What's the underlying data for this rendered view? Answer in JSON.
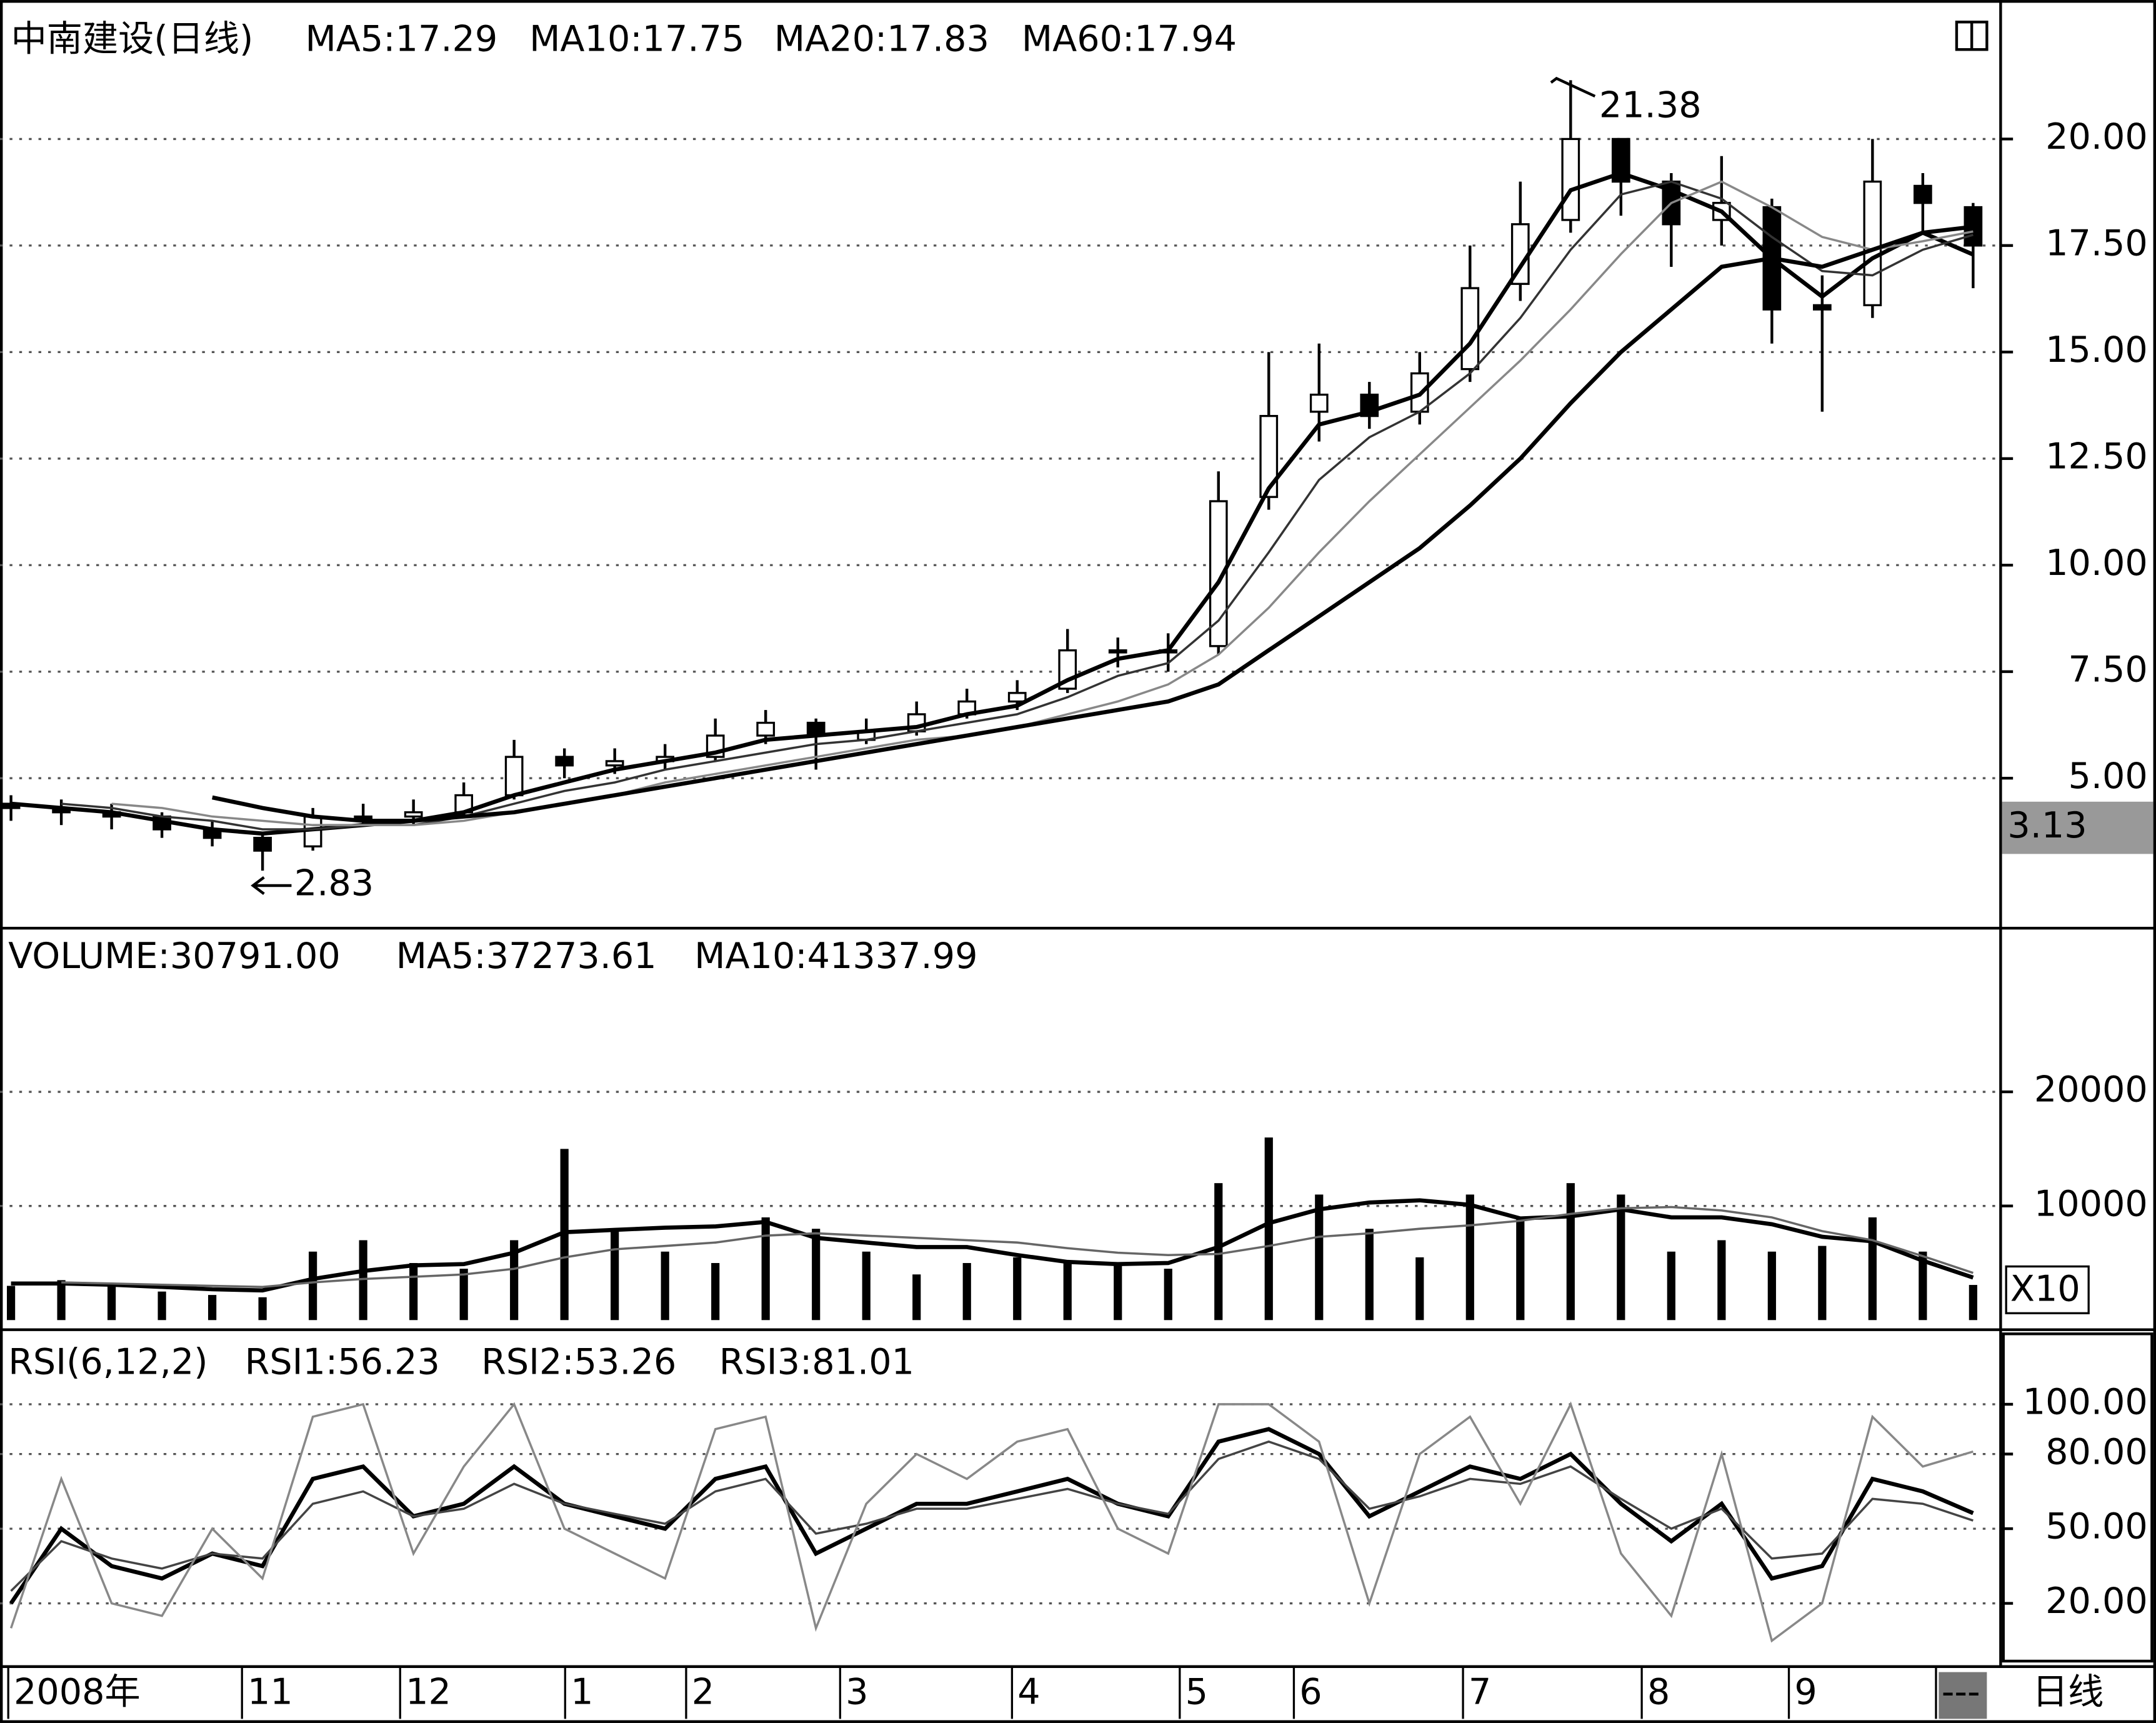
{
  "chart_data": [
    {
      "type": "candlestick",
      "title": "中南建设(日线)",
      "open": [
        4.4,
        4.3,
        4.2,
        4.1,
        3.8,
        3.6,
        3.4,
        4.1,
        4.1,
        4.2,
        4.6,
        5.5,
        5.3,
        5.4,
        5.5,
        6.0,
        6.3,
        5.9,
        6.1,
        6.5,
        6.8,
        7.1,
        8.0,
        8.0,
        8.1,
        11.6,
        13.6,
        14.0,
        13.6,
        14.6,
        16.6,
        18.1,
        20.0,
        19.0,
        18.1,
        18.4,
        16.1,
        16.1,
        18.9,
        18.4
      ],
      "high": [
        4.6,
        4.5,
        4.4,
        4.2,
        4.0,
        3.7,
        4.3,
        4.4,
        4.5,
        4.9,
        5.9,
        5.7,
        5.7,
        5.8,
        6.4,
        6.6,
        6.4,
        6.4,
        6.8,
        7.1,
        7.3,
        8.5,
        8.3,
        8.4,
        12.2,
        15.0,
        15.2,
        14.3,
        15.0,
        17.5,
        19.0,
        21.38,
        20.0,
        19.2,
        19.6,
        18.6,
        16.8,
        20.0,
        19.2,
        18.5
      ],
      "low": [
        4.0,
        3.9,
        3.8,
        3.6,
        3.4,
        2.83,
        3.3,
        3.9,
        3.9,
        4.1,
        4.5,
        5.0,
        5.1,
        5.2,
        5.4,
        5.8,
        5.2,
        5.8,
        6.0,
        6.4,
        6.6,
        7.0,
        7.6,
        7.5,
        7.9,
        11.3,
        12.9,
        13.2,
        13.3,
        14.3,
        16.2,
        17.8,
        18.2,
        17.0,
        17.5,
        15.2,
        13.6,
        15.8,
        17.8,
        16.5
      ],
      "close": [
        4.3,
        4.2,
        4.1,
        3.8,
        3.6,
        3.3,
        4.1,
        4.1,
        4.2,
        4.6,
        5.5,
        5.3,
        5.4,
        5.5,
        6.0,
        6.3,
        6.0,
        6.1,
        6.5,
        6.8,
        7.0,
        8.0,
        8.0,
        8.0,
        11.5,
        13.5,
        14.0,
        13.5,
        14.5,
        16.5,
        18.0,
        20.0,
        19.0,
        18.0,
        18.5,
        16.0,
        16.0,
        19.0,
        18.5,
        17.5
      ],
      "series": [
        {
          "name": "MA5:17.29",
          "color": "#000000",
          "values": [
            4.4,
            4.3,
            4.2,
            4.0,
            3.8,
            3.7,
            3.8,
            3.9,
            4.0,
            4.2,
            4.6,
            4.9,
            5.2,
            5.4,
            5.6,
            5.9,
            6.0,
            6.1,
            6.2,
            6.5,
            6.7,
            7.3,
            7.8,
            8.0,
            9.6,
            11.8,
            13.3,
            13.6,
            14.0,
            15.2,
            17.0,
            18.8,
            19.2,
            18.8,
            18.3,
            17.2,
            16.3,
            17.2,
            17.8,
            17.29
          ]
        },
        {
          "name": "MA10:17.75",
          "color": "#333333",
          "values": [
            null,
            4.4,
            4.3,
            4.1,
            4.0,
            3.8,
            3.8,
            3.9,
            3.9,
            4.1,
            4.4,
            4.7,
            4.9,
            5.2,
            5.4,
            5.6,
            5.8,
            5.9,
            6.1,
            6.3,
            6.5,
            6.9,
            7.4,
            7.7,
            8.7,
            10.3,
            12.0,
            13.0,
            13.6,
            14.5,
            15.8,
            17.4,
            18.7,
            19.0,
            18.6,
            17.7,
            16.9,
            16.8,
            17.4,
            17.75
          ]
        },
        {
          "name": "MA20:17.83",
          "color": "#888888",
          "values": [
            null,
            null,
            4.4,
            4.3,
            4.1,
            4.0,
            3.9,
            3.9,
            3.9,
            4.0,
            4.2,
            4.4,
            4.6,
            4.9,
            5.1,
            5.3,
            5.5,
            5.7,
            5.9,
            6.0,
            6.2,
            6.5,
            6.8,
            7.2,
            7.9,
            9.0,
            10.3,
            11.5,
            12.6,
            13.7,
            14.8,
            16.0,
            17.3,
            18.5,
            19.0,
            18.4,
            17.7,
            17.4,
            17.6,
            17.83
          ]
        },
        {
          "name": "MA60:17.94",
          "color": "#000000",
          "values": [
            null,
            null,
            null,
            null,
            4.55,
            4.3,
            4.1,
            4.0,
            4.0,
            4.1,
            4.2,
            4.4,
            4.6,
            4.8,
            5.0,
            5.2,
            5.4,
            5.6,
            5.8,
            6.0,
            6.2,
            6.4,
            6.6,
            6.8,
            7.2,
            8.0,
            8.8,
            9.6,
            10.4,
            11.4,
            12.5,
            13.8,
            15.0,
            16.0,
            17.0,
            17.2,
            17.0,
            17.4,
            17.8,
            17.94
          ]
        }
      ],
      "ylim": [
        1.48,
        23.1
      ],
      "yticks": [
        {
          "value": 5,
          "label": "5.00"
        },
        {
          "value": 7.5,
          "label": "7.50"
        },
        {
          "value": 10,
          "label": "10.00"
        },
        {
          "value": 12.5,
          "label": "12.50"
        },
        {
          "value": 15,
          "label": "15.00"
        },
        {
          "value": 17.5,
          "label": "17.50"
        },
        {
          "value": 20,
          "label": "20.00"
        }
      ],
      "annotations": [
        {
          "value": 21.38,
          "label": "21.38"
        },
        {
          "value": 2.83,
          "label": "2.83"
        }
      ],
      "cursor_label": "3.13",
      "grid": true
    },
    {
      "type": "bar",
      "title": "VOLUME:30791.00",
      "values": [
        3000,
        3500,
        3000,
        2500,
        2200,
        2000,
        6000,
        7000,
        5000,
        4500,
        7000,
        15000,
        8000,
        6000,
        5000,
        9000,
        8000,
        6000,
        4000,
        5000,
        5500,
        5000,
        5000,
        4500,
        12000,
        16000,
        11000,
        8000,
        5500,
        11000,
        9000,
        12000,
        11000,
        6000,
        7000,
        6000,
        6500,
        9000,
        6000,
        3079
      ],
      "color": "#000000",
      "series": [
        {
          "name": "MA5:37273.61",
          "color": "#000000",
          "values": [
            3200,
            3200,
            3100,
            2900,
            2700,
            2600,
            3600,
            4300,
            4800,
            4900,
            5900,
            7700,
            7900,
            8100,
            8200,
            8600,
            7200,
            6800,
            6400,
            6400,
            5700,
            5100,
            4900,
            5000,
            6400,
            8500,
            9700,
            10300,
            10500,
            10100,
            8900,
            9100,
            9700,
            9000,
            9000,
            8400,
            7300,
            6900,
            5200,
            3727
          ]
        },
        {
          "name": "MA10:41337.99",
          "color": "#666666",
          "values": [
            null,
            3300,
            3200,
            3100,
            3000,
            2900,
            3300,
            3600,
            3800,
            4000,
            4500,
            5500,
            6200,
            6500,
            6800,
            7400,
            7600,
            7400,
            7200,
            7000,
            6800,
            6300,
            5900,
            5700,
            5800,
            6500,
            7300,
            7600,
            8000,
            8300,
            8700,
            9300,
            9800,
            9900,
            9600,
            9000,
            7800,
            7000,
            5600,
            4134
          ]
        }
      ],
      "ylim": [
        0,
        34100
      ],
      "yticks": [
        10000,
        20000
      ],
      "multiplier_label": "X10",
      "grid": true
    },
    {
      "type": "line",
      "title": "RSI(6,12,2)",
      "series": [
        {
          "name": "RSI1:56.23",
          "color": "#000000",
          "values": [
            20,
            50,
            35,
            30,
            40,
            35,
            70,
            75,
            55,
            60,
            75,
            60,
            55,
            50,
            70,
            75,
            40,
            50,
            60,
            60,
            65,
            70,
            60,
            55,
            85,
            90,
            80,
            55,
            65,
            75,
            70,
            80,
            60,
            45,
            60,
            30,
            35,
            70,
            65,
            56.23
          ]
        },
        {
          "name": "RSI2:53.26",
          "color": "#444444",
          "values": [
            25,
            45,
            38,
            34,
            40,
            38,
            60,
            65,
            55,
            58,
            68,
            60,
            56,
            52,
            65,
            70,
            48,
            52,
            58,
            58,
            62,
            66,
            60,
            56,
            78,
            85,
            78,
            58,
            63,
            70,
            68,
            75,
            62,
            50,
            58,
            38,
            40,
            62,
            60,
            53.26
          ]
        },
        {
          "name": "RSI3:81.01",
          "color": "#888888",
          "values": [
            10,
            70,
            20,
            15,
            50,
            30,
            95,
            100,
            40,
            75,
            100,
            50,
            40,
            30,
            90,
            95,
            10,
            60,
            80,
            70,
            85,
            90,
            50,
            40,
            100,
            100,
            85,
            20,
            80,
            95,
            60,
            100,
            40,
            15,
            80,
            5,
            20,
            95,
            75,
            81.01
          ]
        }
      ],
      "ylim": [
        -4.3,
        128.3
      ],
      "yticks": [
        {
          "value": 20,
          "label": "20.00"
        },
        {
          "value": 50,
          "label": "50.00"
        },
        {
          "value": 80,
          "label": "80.00"
        },
        {
          "value": 100,
          "label": "100.00"
        }
      ],
      "grid": true
    }
  ],
  "x_axis": {
    "labels": [
      "2008年",
      "11",
      "12",
      "1",
      "2",
      "3",
      "4",
      "5",
      "6",
      "7",
      "8",
      "9",
      "---"
    ],
    "corner": "日线"
  }
}
